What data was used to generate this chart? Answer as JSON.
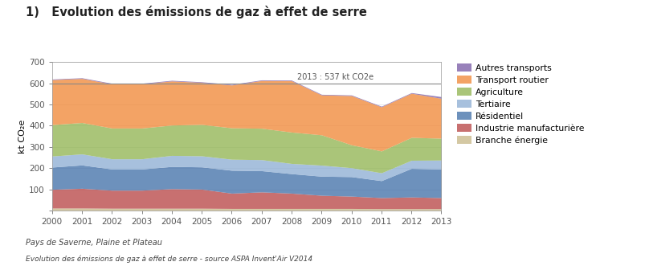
{
  "title": "1)   Evolution des émissions de gaz à effet de serre",
  "ylabel": "kt CO₂e",
  "annotation": "2013 : 537 kt CO2e",
  "footnote1": "Pays de Saverne, Plaine et Plateau",
  "footnote2": "Evolution des émissions de gaz à effet de serre - source ASPA Invent'Air V2014",
  "years": [
    2000,
    2001,
    2002,
    2003,
    2004,
    2005,
    2006,
    2007,
    2008,
    2009,
    2010,
    2011,
    2012,
    2013
  ],
  "series": {
    "Branche énergie": [
      12,
      12,
      11,
      11,
      11,
      11,
      10,
      10,
      10,
      10,
      10,
      9,
      9,
      9
    ],
    "Industrie manufacturière": [
      88,
      93,
      85,
      85,
      92,
      90,
      72,
      78,
      72,
      62,
      58,
      52,
      55,
      52
    ],
    "Résidentiel": [
      105,
      110,
      100,
      100,
      105,
      105,
      108,
      100,
      92,
      90,
      92,
      80,
      135,
      135
    ],
    "Tertiaire": [
      52,
      52,
      48,
      48,
      52,
      52,
      52,
      52,
      48,
      52,
      42,
      37,
      38,
      42
    ],
    "Agriculture": [
      148,
      148,
      145,
      145,
      143,
      148,
      148,
      148,
      148,
      143,
      108,
      103,
      108,
      103
    ],
    "Transport routier": [
      212,
      208,
      208,
      208,
      208,
      198,
      202,
      225,
      242,
      188,
      232,
      208,
      208,
      188
    ],
    "Autres transports": [
      3,
      3,
      3,
      3,
      3,
      3,
      3,
      3,
      3,
      3,
      3,
      3,
      3,
      8
    ]
  },
  "colors": {
    "Branche énergie": "#c8b98a",
    "Industrie manufacturière": "#b94848",
    "Résidentiel": "#4472aa",
    "Tertiaire": "#8fafd4",
    "Agriculture": "#92b554",
    "Transport routier": "#f0893a",
    "Autres transports": "#7b5ea7"
  },
  "legend_order": [
    "Autres transports",
    "Transport routier",
    "Agriculture",
    "Tertiaire",
    "Résidentiel",
    "Industrie manufacturière",
    "Branche énergie"
  ],
  "stack_order": [
    "Branche énergie",
    "Industrie manufacturière",
    "Résidentiel",
    "Tertiaire",
    "Agriculture",
    "Transport routier",
    "Autres transports"
  ],
  "ylim": [
    0,
    700
  ],
  "yticks": [
    0,
    100,
    200,
    300,
    400,
    500,
    600,
    700
  ],
  "hline_y": 600,
  "background_color": "#ffffff",
  "plot_bg": "#ffffff",
  "alpha": 0.78
}
